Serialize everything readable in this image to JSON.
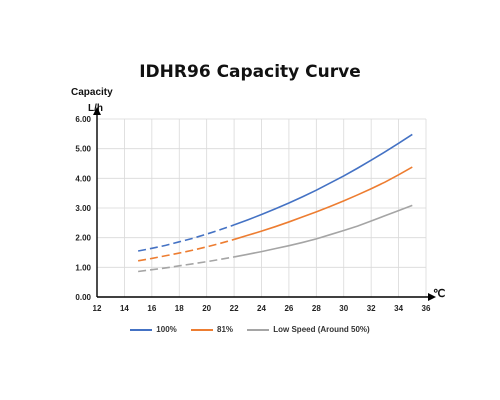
{
  "chart_data": {
    "type": "line",
    "title": "IDHR96  Capacity Curve",
    "ylabel_line1": "Capacity",
    "ylabel_line2": "L/h",
    "xunit": "℃",
    "xlim": [
      12,
      36
    ],
    "ylim": [
      0,
      6
    ],
    "xticks": [
      "12",
      "14",
      "16",
      "18",
      "20",
      "22",
      "24",
      "26",
      "28",
      "30",
      "32",
      "34",
      "36"
    ],
    "yticks": [
      "0.00",
      "1.00",
      "2.00",
      "3.00",
      "4.00",
      "5.00",
      "6.00"
    ],
    "grid": true,
    "legend_position": "bottom",
    "x": [
      15,
      16,
      17,
      18,
      19,
      20,
      21,
      22,
      23,
      24,
      25,
      26,
      27,
      28,
      29,
      30,
      31,
      32,
      33,
      34,
      35
    ],
    "dashed_until_x": 22,
    "series": [
      {
        "name": "100%",
        "color": "#4472C4",
        "values": [
          1.55,
          1.64,
          1.74,
          1.86,
          1.98,
          2.12,
          2.27,
          2.43,
          2.6,
          2.78,
          2.97,
          3.17,
          3.38,
          3.6,
          3.84,
          4.08,
          4.34,
          4.61,
          4.89,
          5.18,
          5.48
        ]
      },
      {
        "name": "81%",
        "color": "#ED7D31",
        "values": [
          1.22,
          1.3,
          1.39,
          1.48,
          1.58,
          1.69,
          1.81,
          1.94,
          2.08,
          2.22,
          2.37,
          2.53,
          2.7,
          2.87,
          3.05,
          3.24,
          3.44,
          3.65,
          3.87,
          4.12,
          4.38
        ]
      },
      {
        "name": "Low Speed (Around 50%)",
        "color": "#A5A5A5",
        "values": [
          0.86,
          0.92,
          0.98,
          1.05,
          1.12,
          1.19,
          1.27,
          1.35,
          1.44,
          1.53,
          1.63,
          1.73,
          1.84,
          1.96,
          2.1,
          2.24,
          2.39,
          2.56,
          2.74,
          2.91,
          3.09
        ]
      }
    ]
  }
}
